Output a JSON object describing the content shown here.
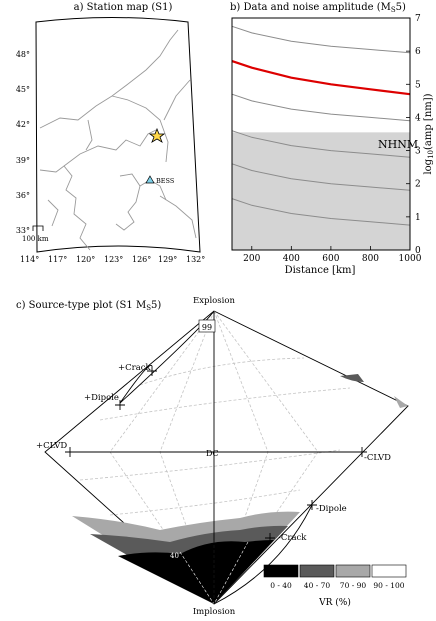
{
  "panel_a": {
    "title": "a) Station map (S1)",
    "lat_ticks": [
      "48°",
      "45°",
      "42°",
      "39°",
      "36°",
      "33°"
    ],
    "lon_ticks": [
      "114°",
      "117°",
      "120°",
      "123°",
      "126°",
      "129°",
      "132°"
    ],
    "station_label": "BESS",
    "scale_label": "100 km"
  },
  "panel_b": {
    "title": "b) Data and noise amplitude (M",
    "title_sub": "S",
    "title_end": "5)",
    "noise_label": "NHNM",
    "ylabel": "log",
    "ylabel_sub": "10",
    "ylabel_end": "(amp [nm])",
    "xlabel": "Distance [km]",
    "xticks": [
      "200",
      "400",
      "600",
      "800",
      "1000"
    ],
    "yticks": [
      "0",
      "1",
      "2",
      "3",
      "4",
      "5",
      "6",
      "7"
    ]
  },
  "panel_c": {
    "title": "c) Source-type plot (S1 M",
    "title_sub": "S",
    "title_end": "5)",
    "labels": {
      "explosion": "Explosion",
      "implosion": "Implosion",
      "crack_pos": "+Crack",
      "dipole_pos": "+Dipole",
      "clvd_pos": "+CLVD",
      "dc": "DC",
      "clvd_neg": "-CLVD",
      "dipole_neg": "-Dipole",
      "crack_neg": "-Crack",
      "contour_top": "99",
      "contour_bottom": "40"
    },
    "legend": {
      "title": "VR (%)",
      "items": [
        {
          "label": "0 - 40",
          "color": "#000000"
        },
        {
          "label": "40 - 70",
          "color": "#5a5a5a"
        },
        {
          "label": "70 - 90",
          "color": "#a8a8a8"
        },
        {
          "label": "90 - 100",
          "color": "#ffffff"
        }
      ]
    }
  },
  "chart_data": {
    "type": "line",
    "title": "Data and noise amplitude (MS5)",
    "xlabel": "Distance [km]",
    "ylabel": "log10(amp [nm])",
    "xlim": [
      100,
      1000
    ],
    "ylim": [
      0,
      7
    ],
    "x": [
      100,
      200,
      400,
      600,
      800,
      1000
    ],
    "series": [
      {
        "values": [
          6.75,
          6.55,
          6.3,
          6.15,
          6.05,
          5.95
        ]
      },
      {
        "values": [
          5.7,
          5.5,
          5.2,
          5.0,
          4.85,
          4.7
        ],
        "color": "#dd0000"
      },
      {
        "values": [
          4.7,
          4.5,
          4.25,
          4.1,
          4.0,
          3.9
        ]
      },
      {
        "values": [
          3.6,
          3.4,
          3.15,
          3.0,
          2.9,
          2.8
        ]
      },
      {
        "values": [
          2.6,
          2.4,
          2.15,
          2.0,
          1.9,
          1.8
        ]
      },
      {
        "values": [
          1.55,
          1.35,
          1.1,
          0.95,
          0.85,
          0.75
        ]
      }
    ],
    "noise_band": {
      "from": 0,
      "to": 3.55,
      "label": "NHNM"
    }
  }
}
